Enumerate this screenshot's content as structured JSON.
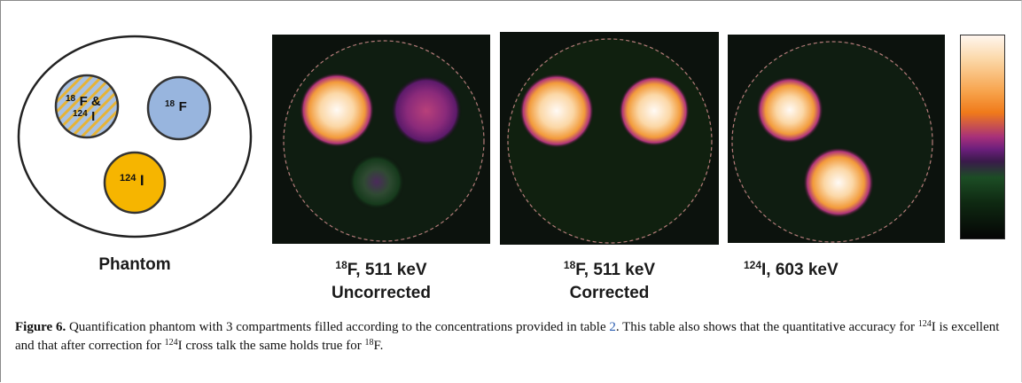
{
  "phantom": {
    "compartments": [
      {
        "iso1": "18",
        "sym1": "F &",
        "iso2": "124",
        "sym2": "I",
        "fill": "#a9c1e2",
        "stripe": "#e6b437"
      },
      {
        "iso1": "18",
        "sym1": "F",
        "fill": "#98b5de"
      },
      {
        "iso1": "124",
        "sym1": "I",
        "fill": "#f6b500"
      }
    ],
    "label": "Phantom"
  },
  "panels": [
    {
      "label_iso": "18",
      "label_line1": "F, 511 keV",
      "label_line2": "Uncorrected"
    },
    {
      "label_iso": "18",
      "label_line1": "F, 511 keV",
      "label_line2": "Corrected"
    },
    {
      "label_iso": "124",
      "label_line1": "I, 603 keV",
      "label_line2": ""
    }
  ],
  "colors": {
    "hot": "#fff8f0",
    "orange": "#f29a3a",
    "purple": "#8a2a7a",
    "green": "#1f5a2a",
    "background": "#0c0f0c",
    "dashed_circle": "#b57a7a"
  },
  "caption": {
    "figure_label": "Figure 6.",
    "text_1": "Quantification phantom with 3 compartments filled according to the concentrations provided in table ",
    "table_ref": "2",
    "text_2": ". This table also shows that the quantitative accuracy for ",
    "iso_1": "124",
    "text_3": "I is excellent and that after correction for ",
    "iso_2": "124",
    "text_4": "I cross talk the same holds true for ",
    "iso_3": "18",
    "text_5": "F."
  }
}
